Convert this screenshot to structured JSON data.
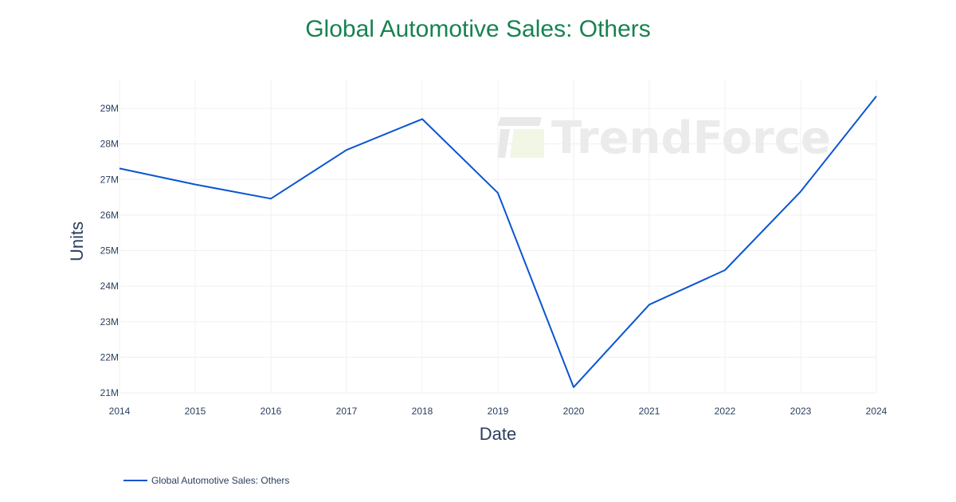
{
  "chart_data": {
    "type": "line",
    "title": "Global Automotive Sales: Others",
    "xlabel": "Date",
    "ylabel": "Units",
    "x": [
      "2014",
      "2015",
      "2016",
      "2017",
      "2018",
      "2019",
      "2020",
      "2021",
      "2022",
      "2023",
      "2024"
    ],
    "series": [
      {
        "name": "Global Automotive Sales: Others",
        "color": "#0a55d2",
        "values": [
          27310000,
          26860000,
          26460000,
          27830000,
          28700000,
          26620000,
          21160000,
          23480000,
          24450000,
          26660000,
          29340000
        ]
      }
    ],
    "y_ticks": [
      "21M",
      "22M",
      "23M",
      "24M",
      "25M",
      "26M",
      "27M",
      "28M",
      "29M"
    ],
    "y_tick_values": [
      21000000,
      22000000,
      23000000,
      24000000,
      25000000,
      26000000,
      27000000,
      28000000,
      29000000
    ],
    "ylim": [
      20980000,
      29340000
    ],
    "grid": true,
    "legend_position": "bottom-left"
  },
  "colors": {
    "title": "#178252",
    "line": "#0a55d2",
    "axis_text": "#2a3f5f",
    "grid": "#f0f0f0"
  },
  "watermark": "TrendForce"
}
